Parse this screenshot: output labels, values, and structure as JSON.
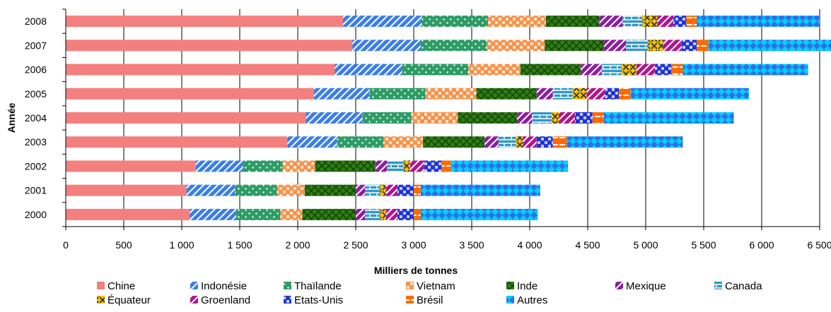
{
  "chart_data": {
    "type": "bar",
    "orientation": "horizontal",
    "stacked": true,
    "categories": [
      "2000",
      "2001",
      "2002",
      "2003",
      "2004",
      "2005",
      "2006",
      "2007",
      "2008"
    ],
    "series": [
      {
        "name": "Chine",
        "color": "#F47F7F",
        "pattern": "solid",
        "values": [
          1070,
          1040,
          1120,
          1910,
          2070,
          2140,
          2320,
          2470,
          2390
        ]
      },
      {
        "name": "Indonésie",
        "color": "#3A7EE8",
        "pattern": "diagonal",
        "values": [
          400,
          420,
          410,
          430,
          490,
          480,
          580,
          590,
          680
        ]
      },
      {
        "name": "Thaïlande",
        "color": "#2E9C66",
        "pattern": "dots",
        "values": [
          380,
          360,
          340,
          400,
          420,
          480,
          570,
          570,
          570
        ]
      },
      {
        "name": "Vietnam",
        "color": "#F7934A",
        "pattern": "check",
        "values": [
          190,
          240,
          280,
          340,
          400,
          440,
          450,
          500,
          500
        ]
      },
      {
        "name": "Inde",
        "color": "#2E7D12",
        "pattern": "cross",
        "values": [
          460,
          440,
          520,
          530,
          510,
          520,
          520,
          510,
          460
        ]
      },
      {
        "name": "Mexique",
        "color": "#8C1F9E",
        "pattern": "diagonal",
        "values": [
          80,
          80,
          100,
          120,
          130,
          140,
          180,
          190,
          200
        ]
      },
      {
        "name": "Canada",
        "color": "#3197C6",
        "pattern": "brick",
        "values": [
          130,
          130,
          140,
          150,
          170,
          170,
          170,
          190,
          170
        ]
      },
      {
        "name": "Équateur",
        "color": "#F2C200",
        "pattern": "x",
        "values": [
          50,
          50,
          60,
          60,
          60,
          120,
          130,
          130,
          130
        ]
      },
      {
        "name": "Groenland",
        "color": "#B0158E",
        "pattern": "diagonal",
        "values": [
          100,
          100,
          120,
          120,
          140,
          160,
          160,
          160,
          140
        ]
      },
      {
        "name": "Etats-Unis",
        "color": "#1E35D6",
        "pattern": "check",
        "values": [
          140,
          140,
          150,
          140,
          150,
          120,
          140,
          130,
          110
        ]
      },
      {
        "name": "Brésil",
        "color": "#FF6A00",
        "pattern": "dash",
        "values": [
          60,
          60,
          80,
          120,
          100,
          100,
          100,
          100,
          90
        ]
      },
      {
        "name": "Autres",
        "color": "#00CFFF",
        "pattern": "diamond",
        "values": [
          1010,
          1030,
          1010,
          1000,
          1120,
          1020,
          1080,
          1160,
          1060
        ]
      }
    ],
    "xlabel": "Milliers de tonnes",
    "ylabel": "Année",
    "xlim": [
      0,
      6500
    ],
    "xticks": [
      0,
      500,
      1000,
      1500,
      2000,
      2500,
      3000,
      3500,
      4000,
      4500,
      5000,
      5500,
      6000,
      6500
    ],
    "xtick_labels": [
      "0",
      "500",
      "1 000",
      "1 500",
      "2 000",
      "2 500",
      "3 000",
      "3 500",
      "4 000",
      "4 500",
      "5 000",
      "5 500",
      "6 000",
      "6 500"
    ],
    "grid": "vertical",
    "legend_position": "bottom"
  }
}
